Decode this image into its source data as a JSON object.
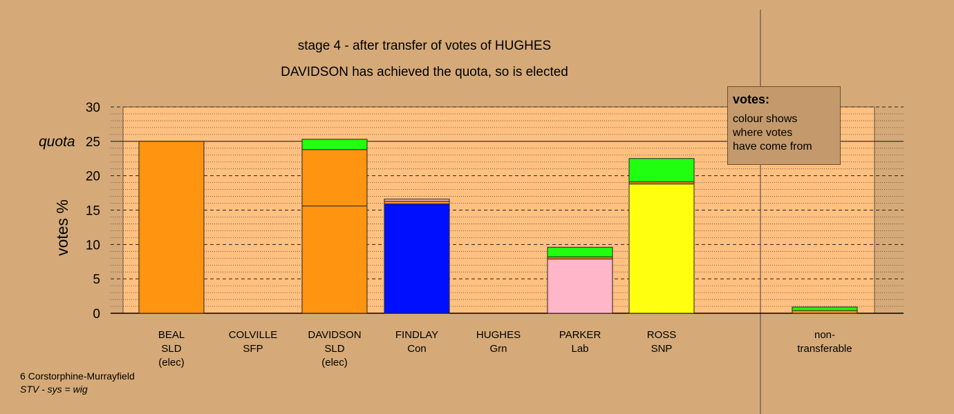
{
  "chart_data": {
    "type": "bar",
    "stacked": true,
    "title": "stage 4 - after transfer of votes of HUGHES",
    "subtitle": "DAVIDSON has achieved the quota, so is elected",
    "ylabel": "votes %",
    "ylim": [
      0,
      30
    ],
    "yticks": [
      "0",
      "5",
      "10",
      "15",
      "20",
      "25",
      "30"
    ],
    "quota_label": "quota",
    "quota_value": 25,
    "grid": true,
    "candidates": [
      {
        "lines": [
          "BEAL",
          "SLD",
          "(elec)"
        ],
        "segments": [
          {
            "value": 25.0,
            "color": "#ff9410"
          }
        ]
      },
      {
        "lines": [
          "COLVILLE",
          "SFP"
        ],
        "segments": []
      },
      {
        "lines": [
          "DAVIDSON",
          "SLD",
          "(elec)"
        ],
        "segments": [
          {
            "value": 15.6,
            "color": "#ff9410"
          },
          {
            "value": 8.2,
            "color": "#ff9410"
          },
          {
            "value": 1.5,
            "color": "#20ff10"
          }
        ]
      },
      {
        "lines": [
          "FINDLAY",
          "Con"
        ],
        "segments": [
          {
            "value": 15.9,
            "color": "#0010ff"
          },
          {
            "value": 0.4,
            "color": "#ff9410"
          },
          {
            "value": 0.3,
            "color": "#ffb6c8"
          }
        ]
      },
      {
        "lines": [
          "HUGHES",
          "Grn"
        ],
        "segments": []
      },
      {
        "lines": [
          "PARKER",
          "Lab"
        ],
        "segments": [
          {
            "value": 7.9,
            "color": "#ffb6c8"
          },
          {
            "value": 0.3,
            "color": "#ff9410"
          },
          {
            "value": 1.4,
            "color": "#20ff10"
          }
        ]
      },
      {
        "lines": [
          "ROSS",
          "SNP"
        ],
        "segments": [
          {
            "value": 18.8,
            "color": "#ffff10"
          },
          {
            "value": 0.3,
            "color": "#ff9410"
          },
          {
            "value": 3.4,
            "color": "#20ff10"
          }
        ]
      },
      {
        "lines": [
          "",
          ""
        ],
        "segments": []
      },
      {
        "lines": [
          "non-",
          "transferable"
        ],
        "segments": [
          {
            "value": 0.4,
            "color": "#ff9410"
          },
          {
            "value": 0.5,
            "color": "#20ff10"
          }
        ]
      }
    ]
  },
  "legend": {
    "title": "votes:",
    "lines": [
      "colour shows",
      "where votes",
      "have come from"
    ]
  },
  "footer": {
    "line1": "6 Corstorphine-Murrayfield",
    "line2": "STV - sys = wig"
  }
}
